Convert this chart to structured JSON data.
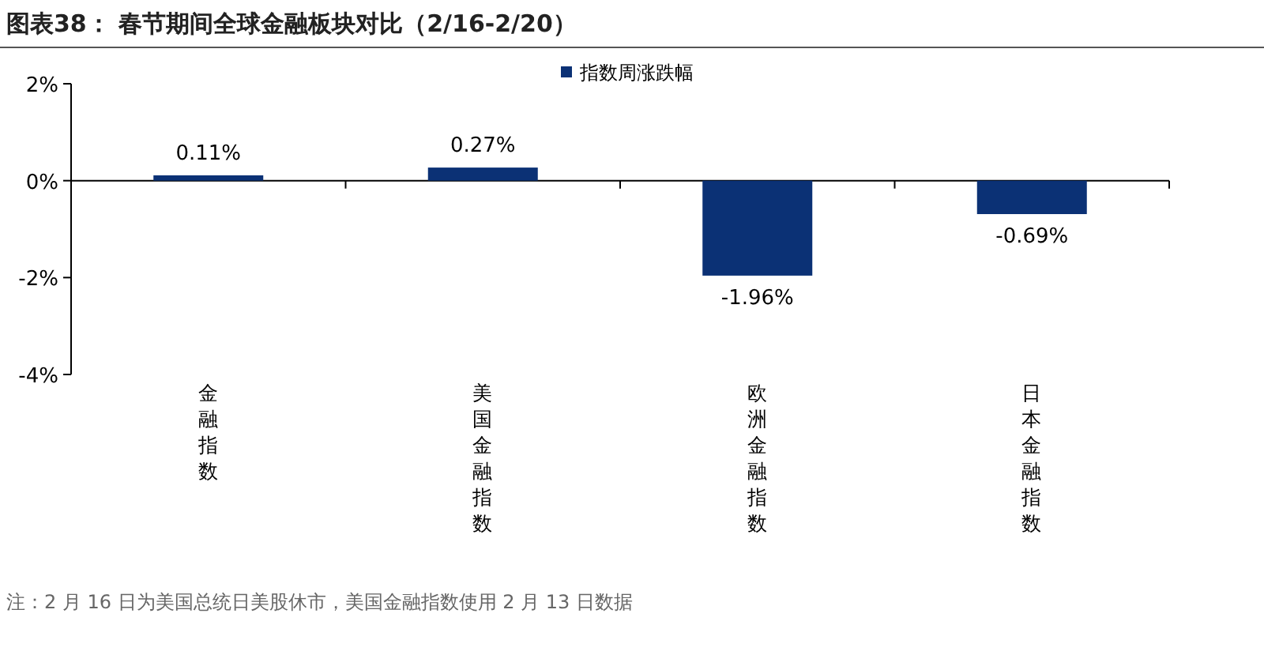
{
  "chart_data": {
    "type": "bar",
    "title": "图表38：  春节期间全球金融板块对比（2/16-2/20）",
    "categories": [
      "金融指数",
      "美国金融指数",
      "欧洲金融指数",
      "日本金融指数"
    ],
    "series": [
      {
        "name": "指数周涨跌幅",
        "color": "#0b3175",
        "values": [
          0.11,
          0.27,
          -1.96,
          -0.69
        ],
        "value_labels": [
          "0.11%",
          "0.27%",
          "-1.96%",
          "-0.69%"
        ]
      }
    ],
    "ylim": [
      -4,
      2
    ],
    "yticks": [
      {
        "value": -4,
        "label": "-4%"
      },
      {
        "value": -2,
        "label": "-2%"
      },
      {
        "value": 0,
        "label": "0%"
      },
      {
        "value": 2,
        "label": "2%"
      }
    ],
    "legend": "top",
    "annotations": [
      "注：2 月 16 日为美国总统日美股休市，美国金融指数使用 2 月 13 日数据"
    ]
  }
}
